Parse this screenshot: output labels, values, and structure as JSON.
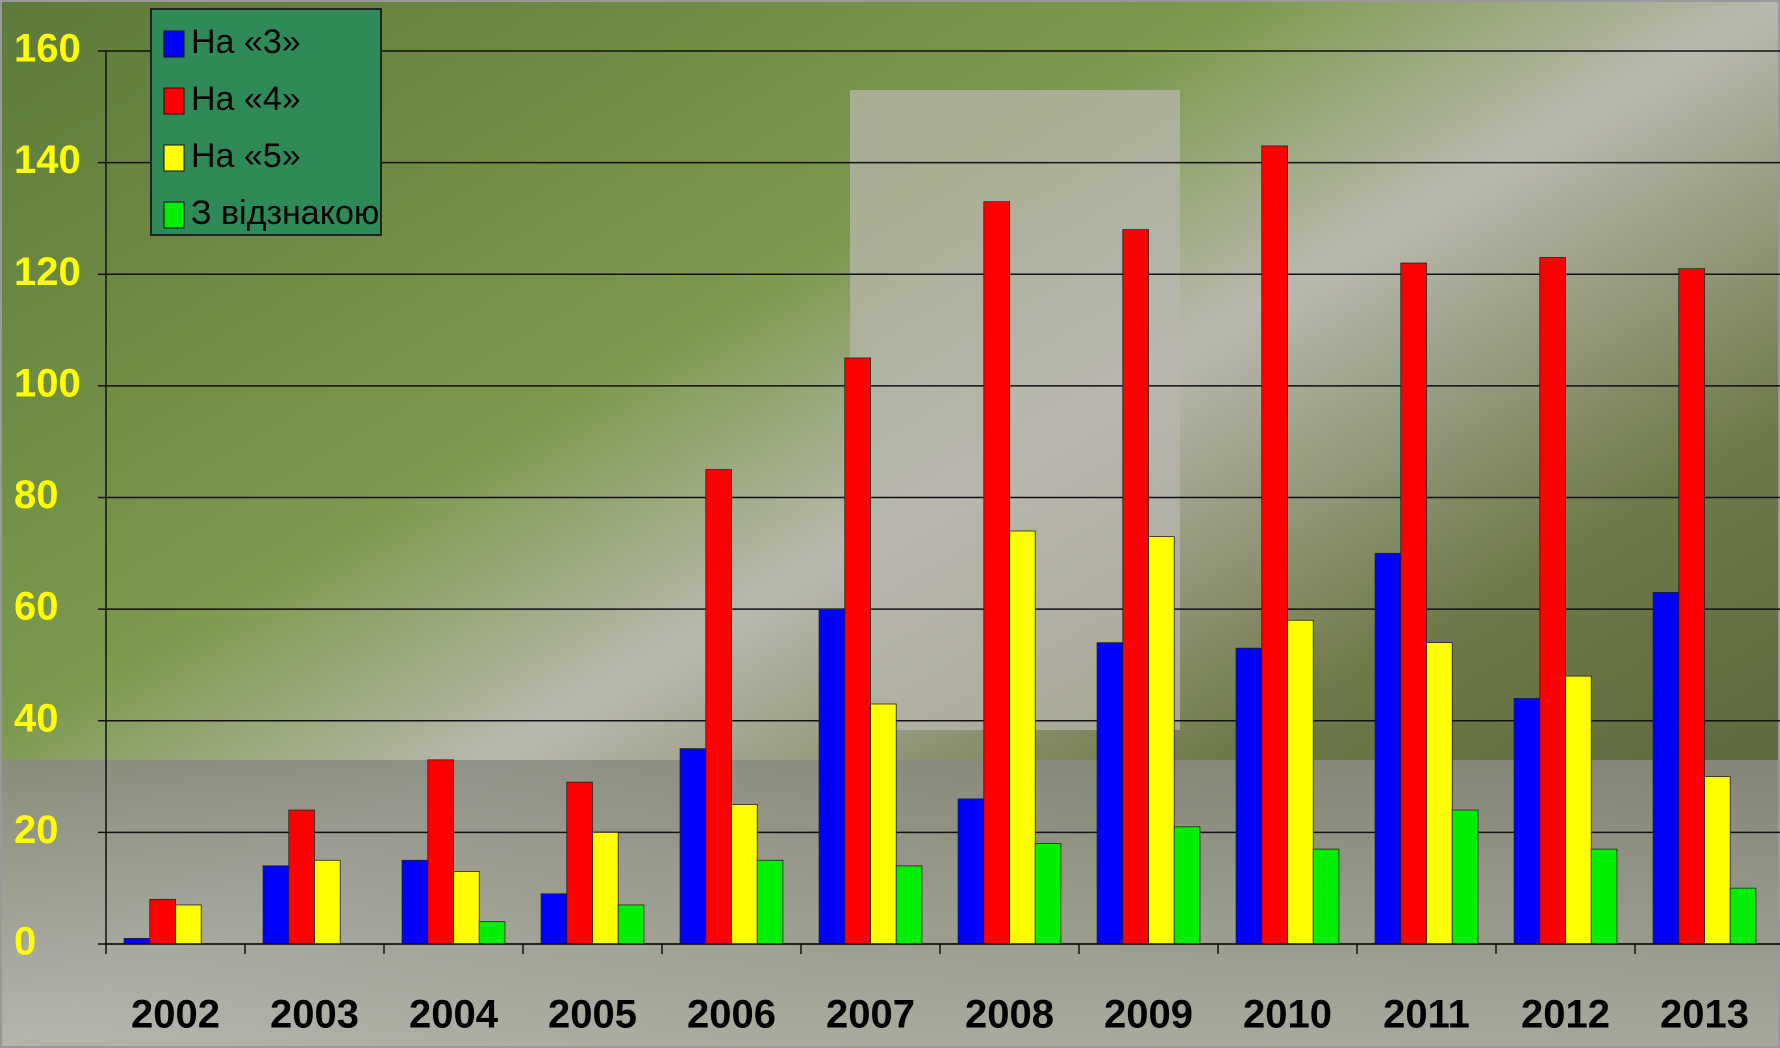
{
  "chart_data": {
    "type": "bar",
    "categories": [
      "2002",
      "2003",
      "2004",
      "2005",
      "2006",
      "2007",
      "2008",
      "2009",
      "2010",
      "2011",
      "2012",
      "2013"
    ],
    "series": [
      {
        "name": "На «3»",
        "color": "#0000ff",
        "values": [
          1,
          14,
          15,
          9,
          35,
          60,
          26,
          54,
          53,
          70,
          44,
          63
        ]
      },
      {
        "name": "На «4»",
        "color": "#ff0000",
        "values": [
          8,
          24,
          33,
          29,
          85,
          105,
          133,
          128,
          143,
          122,
          123,
          121
        ]
      },
      {
        "name": "На «5»",
        "color": "#ffff00",
        "values": [
          7,
          15,
          13,
          20,
          25,
          43,
          74,
          73,
          58,
          54,
          48,
          30
        ]
      },
      {
        "name": "З відзнакою",
        "color": "#00ee00",
        "values": [
          0,
          0,
          4,
          7,
          15,
          14,
          18,
          21,
          17,
          24,
          17,
          10
        ]
      }
    ],
    "ylim": [
      0,
      160
    ],
    "yticks": [
      0,
      20,
      40,
      60,
      80,
      100,
      120,
      140,
      160
    ],
    "grid": true,
    "legend": "top-left"
  }
}
